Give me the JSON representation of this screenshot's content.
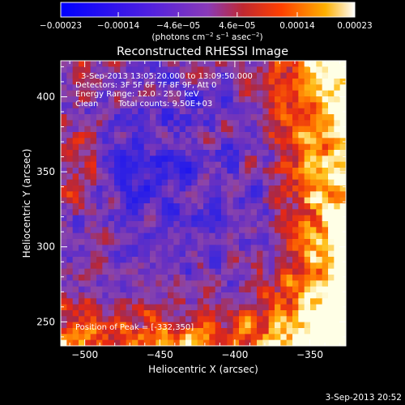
{
  "chart_data": {
    "type": "heatmap",
    "title": "Reconstructed RHESSI Image",
    "xlabel": "Heliocentric X (arcsec)",
    "ylabel": "Heliocentric Y (arcsec)",
    "xlim": [
      -516,
      -326
    ],
    "ylim": [
      234,
      424
    ],
    "x_ticks": [
      -500,
      -450,
      -400,
      -350
    ],
    "x_tick_labels": [
      "−500",
      "−450",
      "−400",
      "−350"
    ],
    "y_ticks": [
      250,
      300,
      350,
      400
    ],
    "y_tick_labels": [
      "250",
      "300",
      "350",
      "400"
    ],
    "colorbar": {
      "range": [
        -0.00023,
        0.00023
      ],
      "ticks": [
        -0.00023,
        -0.00014,
        -4.6e-05,
        4.6e-05,
        0.00014,
        0.00023
      ],
      "tick_labels": [
        "−0.00023",
        "−0.00014",
        "−4.6e−05",
        "4.6e−05",
        "0.00014",
        "0.00023"
      ],
      "unit_prefix": "(photons cm",
      "unit_exp1": "−2",
      "unit_mid": " s",
      "unit_exp2": "−1",
      "unit_mid2": " asec",
      "unit_exp3": "−2",
      "unit_suffix": ")",
      "colors": [
        "#0000ff",
        "#6a28d8",
        "#9a3ab0",
        "#c82828",
        "#ff5000",
        "#ffb000",
        "#ffffff"
      ]
    },
    "annotations": [
      "3-Sep-2013 13:05:20.000 to 13:09:50.000",
      "Detectors: 3F 5F 6F 7F 8F 9F, Att 0",
      "Energy Range: 12.0 - 25.0 keV",
      "Clean",
      "Total counts: 9.50E+03"
    ],
    "peak_label": "Position of Peak = [-332,350]",
    "peak_position": [
      -332,
      350
    ],
    "grid": false
  },
  "footer": {
    "date": "3-Sep-2013 20:52"
  }
}
